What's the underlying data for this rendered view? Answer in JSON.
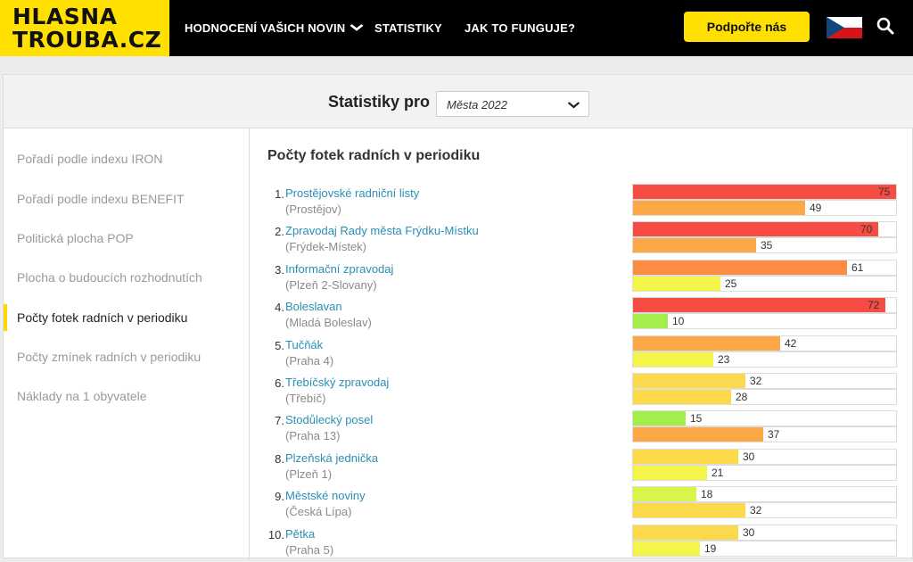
{
  "header": {
    "logo_line1": "HLASNA",
    "logo_line2": "TROUBA.CZ",
    "nav": [
      {
        "label": "HODNOCENÍ VAŠICH NOVIN",
        "dropdown": true
      },
      {
        "label": "STATISTIKY"
      },
      {
        "label": "JAK TO FUNGUJE?"
      }
    ],
    "support_label": "Podpořte nás",
    "flag": "czech-flag-icon",
    "search": "search-icon"
  },
  "stats": {
    "label": "Statistiky pro",
    "select_value": "Města 2022"
  },
  "sidebar": {
    "items": [
      {
        "label": "Pořadí podle indexu IRON",
        "active": false
      },
      {
        "label": "Pořadí podle indexu BENEFIT",
        "active": false
      },
      {
        "label": "Politická plocha POP",
        "active": false
      },
      {
        "label": "Plocha o budoucích rozhodnutích",
        "active": false
      },
      {
        "label": "Počty fotek radních v periodiku",
        "active": true
      },
      {
        "label": "Počty zmínek radních v periodiku",
        "active": false
      },
      {
        "label": "Náklady na 1 obyvatele",
        "active": false
      }
    ]
  },
  "main": {
    "heading": "Počty fotek radních v periodiku",
    "max_value": 75,
    "entries": [
      {
        "rank": "1.",
        "name": "Prostějovské radniční listy",
        "city": "(Prostějov)",
        "v1": 75,
        "v2": 49
      },
      {
        "rank": "2.",
        "name": "Zpravodaj Rady města Frýdku-Místku",
        "city": "(Frýdek-Místek)",
        "v1": 70,
        "v2": 35
      },
      {
        "rank": "3.",
        "name": "Informační zpravodaj",
        "city": "(Plzeň 2-Slovany)",
        "v1": 61,
        "v2": 25
      },
      {
        "rank": "4.",
        "name": "Boleslavan",
        "city": "(Mladá Boleslav)",
        "v1": 72,
        "v2": 10
      },
      {
        "rank": "5.",
        "name": "Tučňák",
        "city": "(Praha 4)",
        "v1": 42,
        "v2": 23
      },
      {
        "rank": "6.",
        "name": "Třebíčský zpravodaj",
        "city": "(Třebíč)",
        "v1": 32,
        "v2": 28
      },
      {
        "rank": "7.",
        "name": "Stodůlecký posel",
        "city": "(Praha 13)",
        "v1": 15,
        "v2": 37
      },
      {
        "rank": "8.",
        "name": "Plzeňská jednička",
        "city": "(Plzeň 1)",
        "v1": 30,
        "v2": 21
      },
      {
        "rank": "9.",
        "name": "Městské noviny",
        "city": "(Česká Lípa)",
        "v1": 18,
        "v2": 32
      },
      {
        "rank": "10.",
        "name": "Pětka",
        "city": "(Praha 5)",
        "v1": 30,
        "v2": 19
      }
    ]
  },
  "colors": {
    "brand_yellow": "#ffe000",
    "link": "#2a8fb5",
    "scale": [
      "#a3ee4a",
      "#d9f54a",
      "#f3f548",
      "#fcd94a",
      "#fba846",
      "#fb8c44",
      "#f74c43"
    ]
  }
}
